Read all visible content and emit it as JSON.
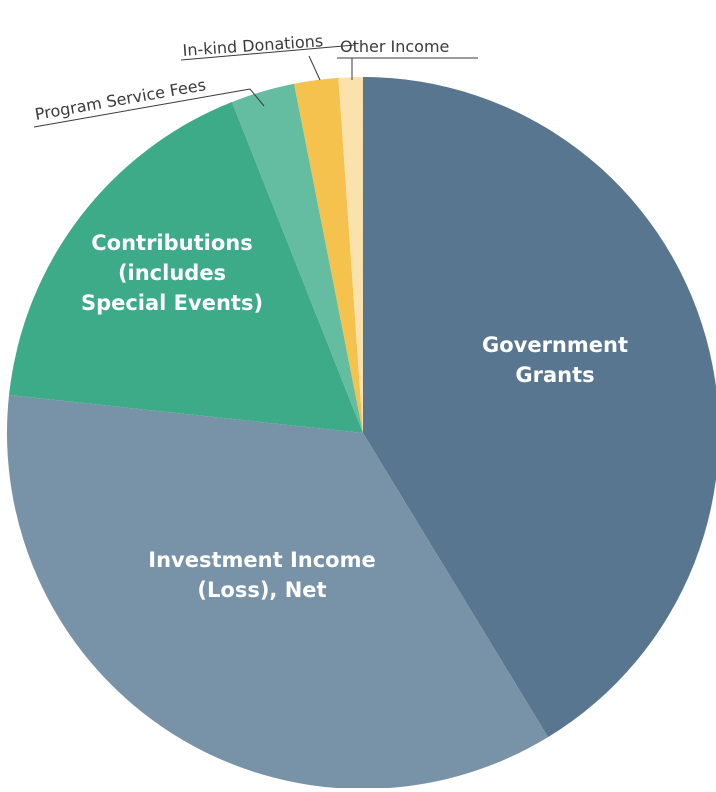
{
  "chart_data": {
    "type": "pie",
    "title": "",
    "slices": [
      {
        "label": "Government Grants",
        "value": 41.3,
        "color": "#58768f",
        "label_lines": [
          "Government",
          "Grants"
        ],
        "label_style": "inside"
      },
      {
        "label": "Investment Income (Loss), Net",
        "value": 35.4,
        "color": "#7893a8",
        "label_lines": [
          "Investment Income",
          "(Loss), Net"
        ],
        "label_style": "inside"
      },
      {
        "label": "Contributions (includes Special Events)",
        "value": 17.3,
        "color": "#3daa88",
        "label_lines": [
          "Contributions",
          "(includes",
          "Special Events)"
        ],
        "label_style": "inside"
      },
      {
        "label": "Program Service Fees",
        "value": 2.9,
        "color": "#64bda0",
        "label_lines": [
          "Program Service Fees"
        ],
        "label_style": "outside"
      },
      {
        "label": "In-kind Donations",
        "value": 2.0,
        "color": "#f4c24d",
        "label_lines": [
          "In-kind Donations"
        ],
        "label_style": "outside"
      },
      {
        "label": "Other Income",
        "value": 1.1,
        "color": "#fbe2ac",
        "label_lines": [
          "Other Income"
        ],
        "label_style": "outside"
      }
    ],
    "start_angle_deg": 0,
    "direction": "clockwise",
    "legend": "none"
  }
}
